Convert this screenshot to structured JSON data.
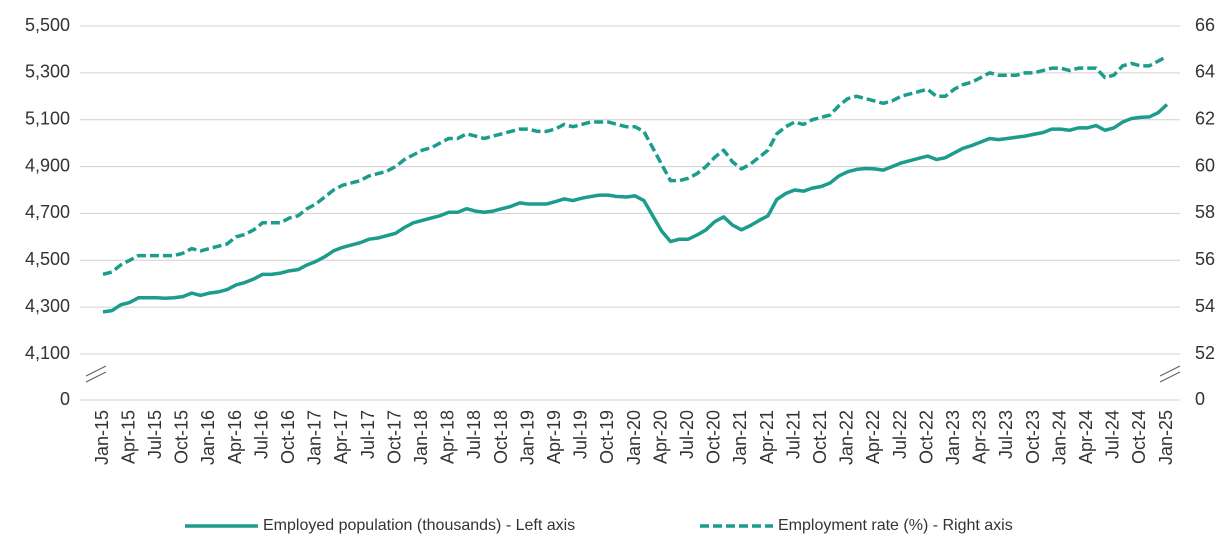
{
  "chart_data": {
    "type": "line",
    "categories": [
      "Jan-15",
      null,
      null,
      "Apr-15",
      null,
      null,
      "Jul-15",
      null,
      null,
      "Oct-15",
      null,
      null,
      "Jan-16",
      null,
      null,
      "Apr-16",
      null,
      null,
      "Jul-16",
      null,
      null,
      "Oct-16",
      null,
      null,
      "Jan-17",
      null,
      null,
      "Apr-17",
      null,
      null,
      "Jul-17",
      null,
      null,
      "Oct-17",
      null,
      null,
      "Jan-18",
      null,
      null,
      "Apr-18",
      null,
      null,
      "Jul-18",
      null,
      null,
      "Oct-18",
      null,
      null,
      "Jan-19",
      null,
      null,
      "Apr-19",
      null,
      null,
      "Jul-19",
      null,
      null,
      "Oct-19",
      null,
      null,
      "Jan-20",
      null,
      null,
      "Apr-20",
      null,
      null,
      "Jul-20",
      null,
      null,
      "Oct-20",
      null,
      null,
      "Jan-21",
      null,
      null,
      "Apr-21",
      null,
      null,
      "Jul-21",
      null,
      null,
      "Oct-21",
      null,
      null,
      "Jan-22",
      null,
      null,
      "Apr-22",
      null,
      null,
      "Jul-22",
      null,
      null,
      "Oct-22",
      null,
      null,
      "Jan-23",
      null,
      null,
      "Apr-23",
      null,
      null,
      "Jul-23",
      null,
      null,
      "Oct-23",
      null,
      null,
      "Jan-24",
      null,
      null,
      "Apr-24",
      null,
      null,
      "Jul-24",
      null,
      null,
      "Oct-24",
      null,
      null,
      "Jan-25"
    ],
    "series": [
      {
        "name": "Employed population (thousands) - Left axis",
        "color": "#1c9c8c",
        "dash": false,
        "values": [
          4280,
          4285,
          4310,
          4320,
          4340,
          4340,
          4340,
          4338,
          4340,
          4345,
          4360,
          4350,
          4360,
          4365,
          4375,
          4395,
          4405,
          4420,
          4440,
          4440,
          4445,
          4455,
          4460,
          4480,
          4495,
          4515,
          4540,
          4555,
          4565,
          4575,
          4590,
          4595,
          4605,
          4615,
          4640,
          4660,
          4670,
          4680,
          4690,
          4705,
          4705,
          4720,
          4710,
          4705,
          4710,
          4720,
          4730,
          4745,
          4740,
          4740,
          4740,
          4750,
          4762,
          4755,
          4765,
          4772,
          4778,
          4778,
          4772,
          4770,
          4775,
          4755,
          4690,
          4625,
          4580,
          4590,
          4590,
          4608,
          4630,
          4665,
          4685,
          4650,
          4630,
          4648,
          4670,
          4690,
          4760,
          4785,
          4800,
          4795,
          4808,
          4815,
          4830,
          4860,
          4878,
          4888,
          4892,
          4890,
          4885,
          4900,
          4915,
          4925,
          4935,
          4945,
          4930,
          4938,
          4958,
          4978,
          4990,
          5005,
          5020,
          5015,
          5020,
          5025,
          5030,
          5038,
          5045,
          5060,
          5060,
          5055,
          5065,
          5065,
          5075,
          5055,
          5065,
          5090,
          5105,
          5110,
          5112,
          5130,
          5165
        ]
      },
      {
        "name": "Employment rate (%) - Right axis",
        "color": "#1c9c8c",
        "dash": true,
        "axis": "y2",
        "values": [
          55.4,
          55.5,
          55.8,
          56.0,
          56.2,
          56.2,
          56.2,
          56.2,
          56.2,
          56.3,
          56.5,
          56.4,
          56.5,
          56.6,
          56.7,
          57.0,
          57.1,
          57.3,
          57.6,
          57.6,
          57.6,
          57.8,
          57.9,
          58.2,
          58.4,
          58.7,
          59.0,
          59.2,
          59.3,
          59.4,
          59.6,
          59.7,
          59.8,
          60.0,
          60.3,
          60.5,
          60.7,
          60.8,
          61.0,
          61.2,
          61.2,
          61.4,
          61.3,
          61.2,
          61.3,
          61.4,
          61.5,
          61.6,
          61.6,
          61.5,
          61.5,
          61.6,
          61.8,
          61.7,
          61.8,
          61.9,
          61.9,
          61.9,
          61.8,
          61.7,
          61.7,
          61.5,
          60.8,
          60.1,
          59.4,
          59.4,
          59.5,
          59.7,
          60.0,
          60.4,
          60.7,
          60.2,
          59.9,
          60.1,
          60.4,
          60.7,
          61.4,
          61.7,
          61.9,
          61.8,
          62.0,
          62.1,
          62.2,
          62.6,
          62.9,
          63.0,
          62.9,
          62.8,
          62.7,
          62.8,
          63.0,
          63.1,
          63.2,
          63.3,
          63.0,
          63.0,
          63.3,
          63.5,
          63.6,
          63.8,
          64.0,
          63.9,
          63.9,
          63.9,
          64.0,
          64.0,
          64.1,
          64.2,
          64.2,
          64.1,
          64.2,
          64.2,
          64.2,
          63.8,
          63.9,
          64.3,
          64.4,
          64.3,
          64.3,
          64.5,
          64.7
        ]
      }
    ],
    "ylim": [
      0,
      5500
    ],
    "yticks": [
      0,
      {
        "value": 4100,
        "label": "4,100"
      },
      {
        "value": 4300,
        "label": "4,300"
      },
      {
        "value": 4500,
        "label": "4,500"
      },
      {
        "value": 4700,
        "label": "4,700"
      },
      {
        "value": 4900,
        "label": "4,900"
      },
      {
        "value": 5100,
        "label": "5,100"
      },
      {
        "value": 5300,
        "label": "5,300"
      },
      {
        "value": 5500,
        "label": "5,500"
      }
    ],
    "y2lim": [
      0,
      66
    ],
    "y2ticks": [
      0,
      52,
      54,
      56,
      58,
      60,
      62,
      64,
      66
    ],
    "axis_break": true,
    "grid": true,
    "legend": "bottom"
  }
}
